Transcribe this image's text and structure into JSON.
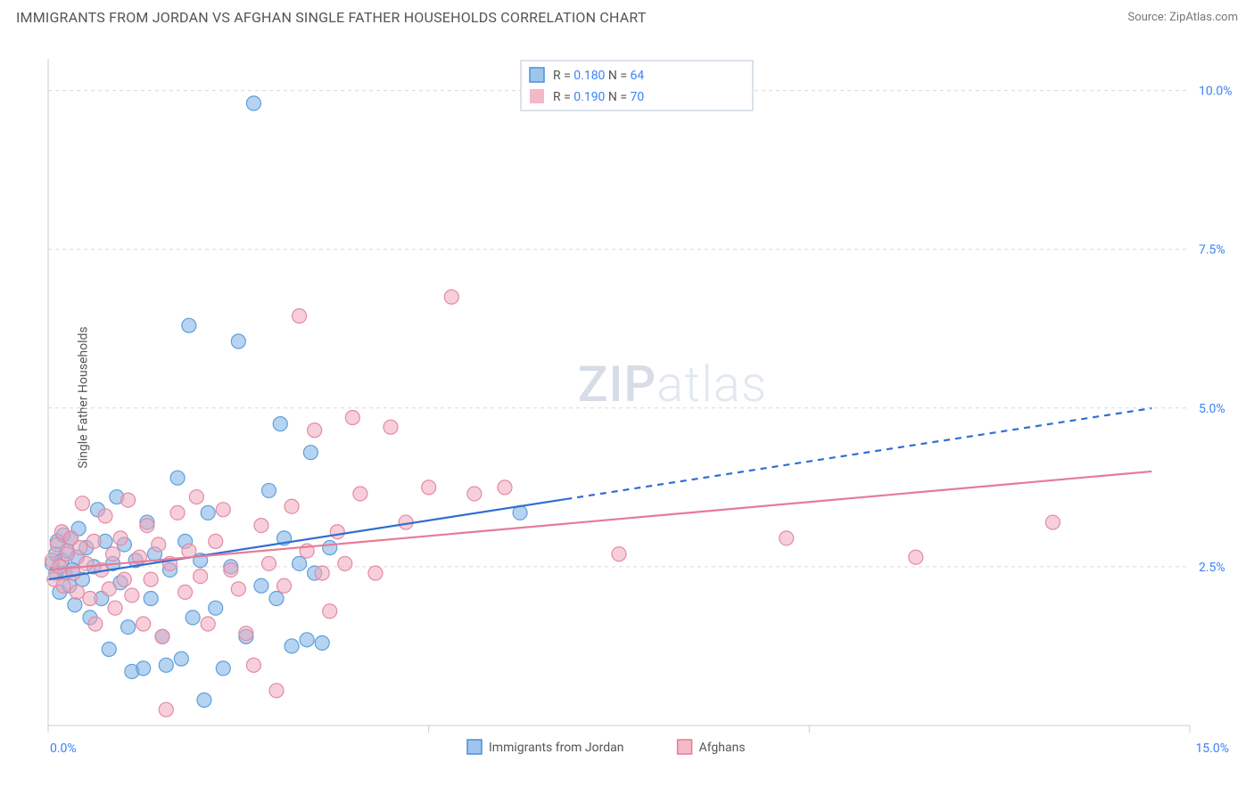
{
  "header": {
    "title": "IMMIGRANTS FROM JORDAN VS AFGHAN SINGLE FATHER HOUSEHOLDS CORRELATION CHART",
    "source_label": "Source: ",
    "source_name": "ZipAtlas.com"
  },
  "chart": {
    "type": "scatter",
    "ylabel": "Single Father Households",
    "background_color": "#ffffff",
    "grid_color": "#d9d9d9",
    "axis_color": "#cccccc",
    "watermark": {
      "part1": "ZIP",
      "part2": "atlas",
      "color1": "#d6dde6",
      "color2": "#e2e8f0"
    },
    "x": {
      "min": 0.0,
      "max": 15.0,
      "ticks": [
        0.0,
        5.0,
        10.0,
        15.0
      ],
      "tick_labels": [
        "0.0%",
        "",
        "",
        "15.0%"
      ]
    },
    "y": {
      "min": 0.0,
      "max": 10.5,
      "grid_at": [
        2.5,
        5.0,
        7.5,
        10.0
      ],
      "tick_labels": [
        "2.5%",
        "5.0%",
        "7.5%",
        "10.0%"
      ]
    },
    "legend_top": {
      "border_color": "#b7c4d6",
      "rows": [
        {
          "swatch_fill": "#9ec5ec",
          "swatch_stroke": "#4d8fd6",
          "r_label": "R = ",
          "r_value": "0.180",
          "n_label": "N = ",
          "n_value": "64",
          "text_color": "#555",
          "value_color": "#3b82f6"
        },
        {
          "swatch_fill": "#f4b9c7",
          "swatch_stroke": "#e恩",
          "r_label": "R = ",
          "r_value": "0.190",
          "n_label": "N = ",
          "n_value": "70",
          "text_color": "#555",
          "value_color": "#3b82f6"
        }
      ]
    },
    "legend_bottom": [
      {
        "swatch_fill": "#9ec5ec",
        "swatch_stroke": "#4d8fd6",
        "label": "Immigrants from Jordan"
      },
      {
        "swatch_fill": "#f4b9c7",
        "swatch_stroke": "#e77b98",
        "label": "Afghans"
      }
    ],
    "series": [
      {
        "name": "jordan",
        "marker_fill": "rgba(122,177,230,0.55)",
        "marker_stroke": "#5f9fd9",
        "marker_r": 8,
        "trend": {
          "color": "#2f6fd0",
          "width": 2.2,
          "y_intercept": 2.3,
          "slope": 0.186,
          "solid_xmax": 6.8,
          "dash_xmax": 14.5
        },
        "points": [
          [
            0.05,
            2.55
          ],
          [
            0.1,
            2.7
          ],
          [
            0.1,
            2.4
          ],
          [
            0.12,
            2.9
          ],
          [
            0.15,
            2.1
          ],
          [
            0.18,
            2.6
          ],
          [
            0.2,
            3.0
          ],
          [
            0.22,
            2.4
          ],
          [
            0.25,
            2.75
          ],
          [
            0.28,
            2.2
          ],
          [
            0.3,
            2.95
          ],
          [
            0.32,
            2.45
          ],
          [
            0.35,
            1.9
          ],
          [
            0.38,
            2.65
          ],
          [
            0.4,
            3.1
          ],
          [
            0.45,
            2.3
          ],
          [
            0.5,
            2.8
          ],
          [
            0.55,
            1.7
          ],
          [
            0.6,
            2.5
          ],
          [
            0.65,
            3.4
          ],
          [
            0.7,
            2.0
          ],
          [
            0.75,
            2.9
          ],
          [
            0.8,
            1.2
          ],
          [
            0.85,
            2.55
          ],
          [
            0.9,
            3.6
          ],
          [
            0.95,
            2.25
          ],
          [
            1.0,
            2.85
          ],
          [
            1.05,
            1.55
          ],
          [
            1.1,
            0.85
          ],
          [
            1.15,
            2.6
          ],
          [
            1.25,
            0.9
          ],
          [
            1.3,
            3.2
          ],
          [
            1.35,
            2.0
          ],
          [
            1.4,
            2.7
          ],
          [
            1.5,
            1.4
          ],
          [
            1.55,
            0.95
          ],
          [
            1.6,
            2.45
          ],
          [
            1.7,
            3.9
          ],
          [
            1.75,
            1.05
          ],
          [
            1.8,
            2.9
          ],
          [
            1.85,
            6.3
          ],
          [
            1.9,
            1.7
          ],
          [
            2.0,
            2.6
          ],
          [
            2.05,
            0.4
          ],
          [
            2.1,
            3.35
          ],
          [
            2.2,
            1.85
          ],
          [
            2.3,
            0.9
          ],
          [
            2.4,
            2.5
          ],
          [
            2.5,
            6.05
          ],
          [
            2.6,
            1.4
          ],
          [
            2.7,
            9.8
          ],
          [
            2.8,
            2.2
          ],
          [
            2.9,
            3.7
          ],
          [
            3.0,
            2.0
          ],
          [
            3.05,
            4.75
          ],
          [
            3.1,
            2.95
          ],
          [
            3.2,
            1.25
          ],
          [
            3.3,
            2.55
          ],
          [
            3.4,
            1.35
          ],
          [
            3.45,
            4.3
          ],
          [
            3.5,
            2.4
          ],
          [
            3.6,
            1.3
          ],
          [
            3.7,
            2.8
          ],
          [
            6.2,
            3.35
          ]
        ]
      },
      {
        "name": "afghans",
        "marker_fill": "rgba(241,168,187,0.55)",
        "marker_stroke": "#e48aa2",
        "marker_r": 8,
        "trend": {
          "color": "#e77b98",
          "width": 2.2,
          "y_intercept": 2.45,
          "slope": 0.107,
          "solid_xmax": 14.5,
          "dash_xmax": 14.5
        },
        "points": [
          [
            0.05,
            2.6
          ],
          [
            0.08,
            2.3
          ],
          [
            0.12,
            2.85
          ],
          [
            0.15,
            2.5
          ],
          [
            0.18,
            3.05
          ],
          [
            0.2,
            2.2
          ],
          [
            0.25,
            2.7
          ],
          [
            0.3,
            2.95
          ],
          [
            0.33,
            2.4
          ],
          [
            0.38,
            2.1
          ],
          [
            0.42,
            2.8
          ],
          [
            0.45,
            3.5
          ],
          [
            0.5,
            2.55
          ],
          [
            0.55,
            2.0
          ],
          [
            0.6,
            2.9
          ],
          [
            0.62,
            1.6
          ],
          [
            0.7,
            2.45
          ],
          [
            0.75,
            3.3
          ],
          [
            0.8,
            2.15
          ],
          [
            0.85,
            2.7
          ],
          [
            0.88,
            1.85
          ],
          [
            0.95,
            2.95
          ],
          [
            1.0,
            2.3
          ],
          [
            1.05,
            3.55
          ],
          [
            1.1,
            2.05
          ],
          [
            1.2,
            2.65
          ],
          [
            1.25,
            1.6
          ],
          [
            1.3,
            3.15
          ],
          [
            1.35,
            2.3
          ],
          [
            1.45,
            2.85
          ],
          [
            1.5,
            1.4
          ],
          [
            1.55,
            0.25
          ],
          [
            1.6,
            2.55
          ],
          [
            1.7,
            3.35
          ],
          [
            1.8,
            2.1
          ],
          [
            1.85,
            2.75
          ],
          [
            1.95,
            3.6
          ],
          [
            2.0,
            2.35
          ],
          [
            2.1,
            1.6
          ],
          [
            2.2,
            2.9
          ],
          [
            2.3,
            3.4
          ],
          [
            2.4,
            2.45
          ],
          [
            2.5,
            2.15
          ],
          [
            2.6,
            1.45
          ],
          [
            2.7,
            0.95
          ],
          [
            2.8,
            3.15
          ],
          [
            2.9,
            2.55
          ],
          [
            3.0,
            0.55
          ],
          [
            3.1,
            2.2
          ],
          [
            3.2,
            3.45
          ],
          [
            3.3,
            6.45
          ],
          [
            3.4,
            2.75
          ],
          [
            3.5,
            4.65
          ],
          [
            3.6,
            2.4
          ],
          [
            3.7,
            1.8
          ],
          [
            3.8,
            3.05
          ],
          [
            3.9,
            2.55
          ],
          [
            4.0,
            4.85
          ],
          [
            4.1,
            3.65
          ],
          [
            4.3,
            2.4
          ],
          [
            4.5,
            4.7
          ],
          [
            4.7,
            3.2
          ],
          [
            5.0,
            3.75
          ],
          [
            5.3,
            6.75
          ],
          [
            5.6,
            3.65
          ],
          [
            6.0,
            3.75
          ],
          [
            7.5,
            2.7
          ],
          [
            9.7,
            2.95
          ],
          [
            11.4,
            2.65
          ],
          [
            13.2,
            3.2
          ]
        ]
      }
    ]
  }
}
